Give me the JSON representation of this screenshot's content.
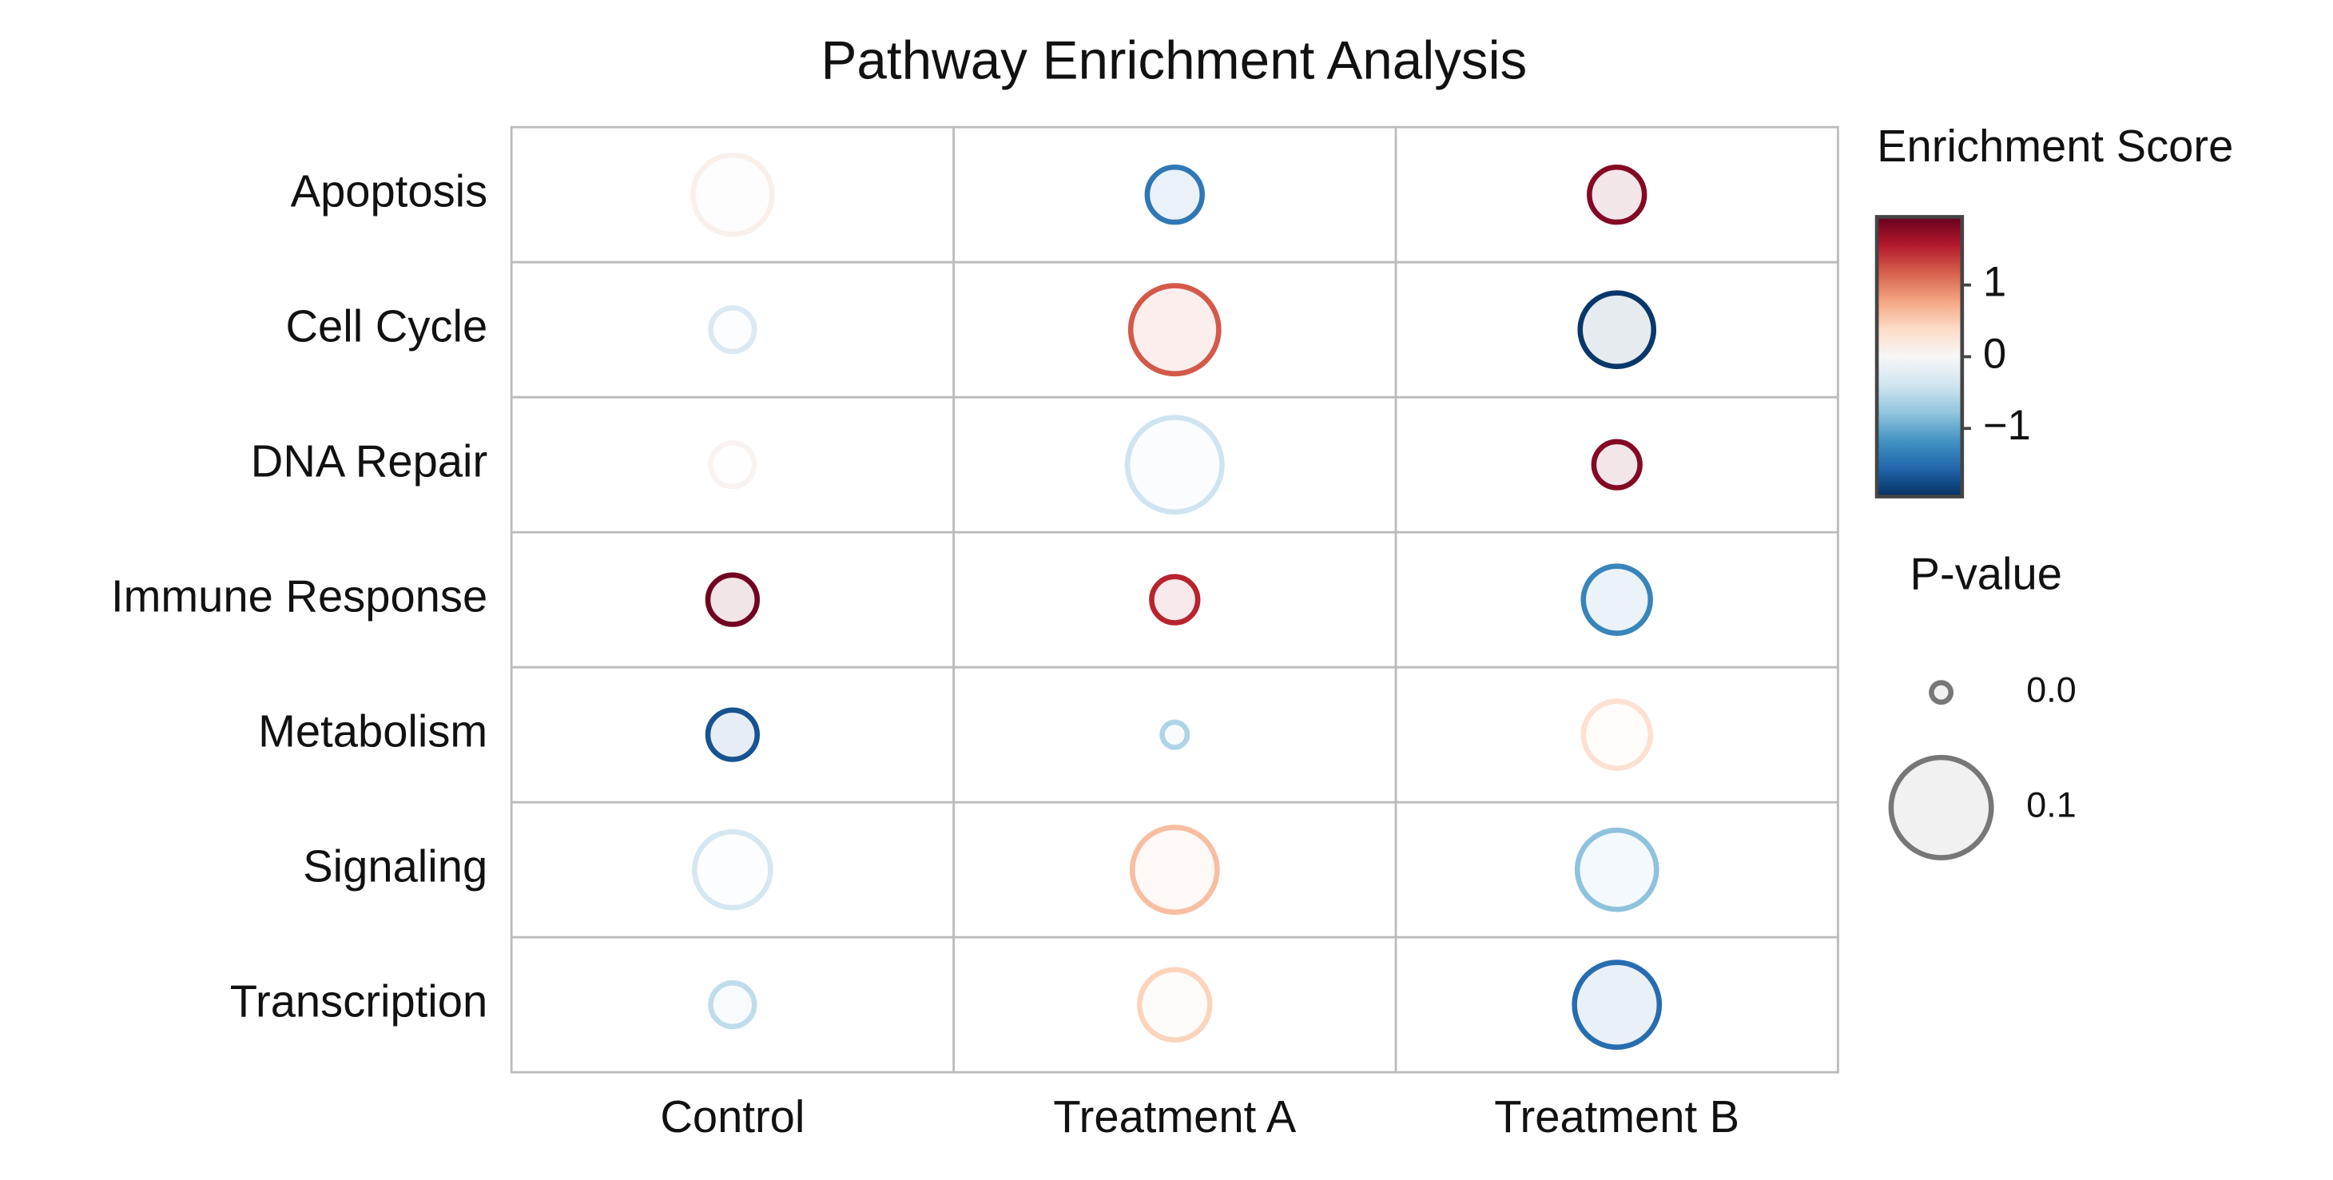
{
  "chart_data": {
    "type": "bubble-matrix",
    "title": "Pathway Enrichment Analysis",
    "rows": [
      "Apoptosis",
      "Cell Cycle",
      "DNA Repair",
      "Immune Response",
      "Metabolism",
      "Signaling",
      "Transcription"
    ],
    "columns": [
      "Control",
      "Treatment A",
      "Treatment B"
    ],
    "scores": [
      [
        0.1,
        -1.4,
        1.8
      ],
      [
        -0.3,
        1.2,
        -1.9
      ],
      [
        0.05,
        -0.4,
        1.8
      ],
      [
        1.9,
        1.5,
        -1.3
      ],
      [
        -1.7,
        -0.6,
        0.3
      ],
      [
        -0.35,
        0.6,
        -0.8
      ],
      [
        -0.5,
        0.45,
        -1.5
      ]
    ],
    "pvalues": [
      [
        0.074,
        0.044,
        0.044
      ],
      [
        0.03,
        0.085,
        0.067
      ],
      [
        0.03,
        0.093,
        0.033
      ],
      [
        0.037,
        0.033,
        0.059
      ],
      [
        0.037,
        0.007,
        0.059
      ],
      [
        0.07,
        0.081,
        0.074
      ],
      [
        0.03,
        0.063,
        0.081
      ]
    ],
    "color_legend": {
      "title": "Enrichment Score",
      "clim": [
        -1.95,
        1.95
      ],
      "ticks": [
        1,
        0,
        {
          "value": -1,
          "label": "−1"
        }
      ],
      "colorscale": [
        "#053061",
        "#2166ac",
        "#4393c3",
        "#92c5de",
        "#d1e5f0",
        "#f7f7f7",
        "#fddbc7",
        "#f4a582",
        "#d6604d",
        "#b2182b",
        "#67001f"
      ]
    },
    "size_legend": {
      "title": "P-value",
      "values": [
        {
          "value": 0,
          "label": "0.0"
        },
        0.1
      ]
    },
    "grid": true
  }
}
